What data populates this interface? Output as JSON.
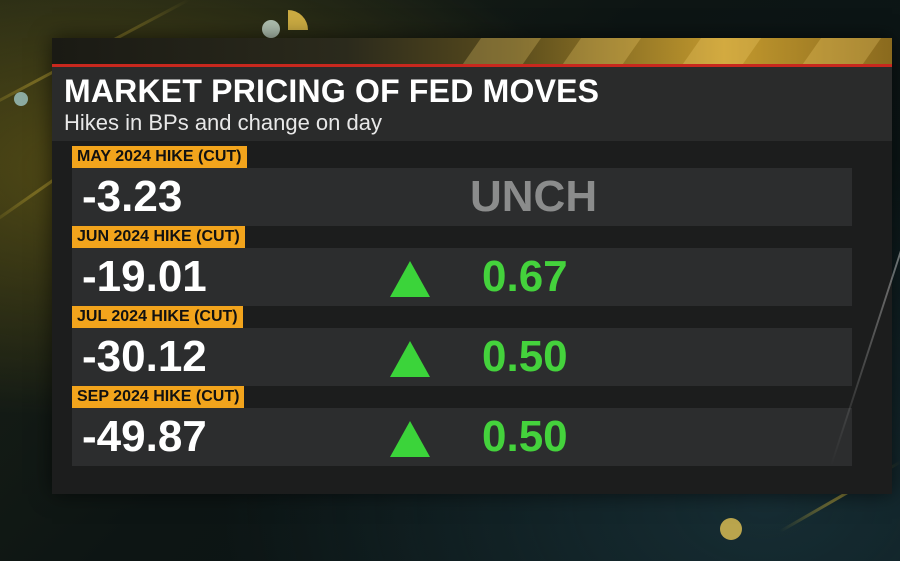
{
  "title": "MARKET PRICING OF FED MOVES",
  "subtitle": "Hikes in BPs and change on day",
  "rows": [
    {
      "label": "MAY 2024 HIKE (CUT)",
      "value": "-3.23",
      "change": "UNCH",
      "direction": "none"
    },
    {
      "label": "JUN 2024 HIKE (CUT)",
      "value": "-19.01",
      "change": "0.67",
      "direction": "up"
    },
    {
      "label": "JUL 2024 HIKE (CUT)",
      "value": "-30.12",
      "change": "0.50",
      "direction": "up"
    },
    {
      "label": "SEP 2024 HIKE (CUT)",
      "value": "-49.87",
      "change": "0.50",
      "direction": "up"
    }
  ],
  "colors": {
    "label_bg": "#f2a41c",
    "up": "#44d23c",
    "unchanged": "#8b8c8c",
    "accent_rule": "#c8281e"
  },
  "icons": {
    "up": "triangle-up-icon"
  }
}
